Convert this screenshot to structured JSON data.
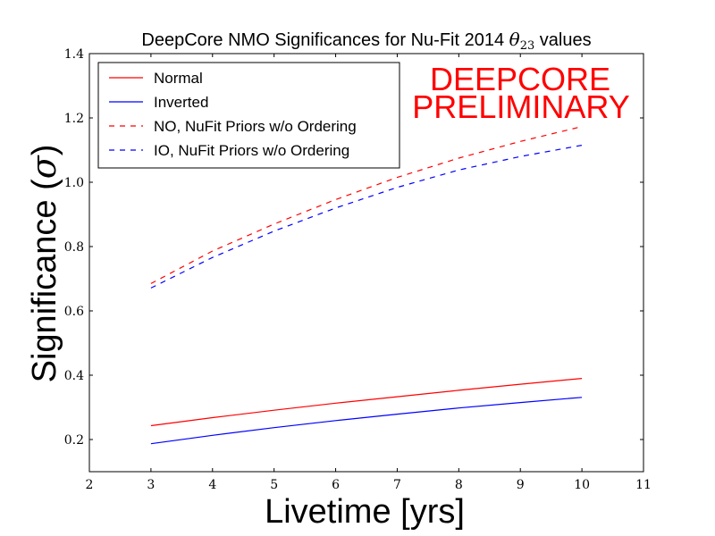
{
  "chart_data": {
    "type": "line",
    "title": "DeepCore NMO Significances for Nu-Fit 2014 θ23 values",
    "title_prefix": "DeepCore NMO Significances for Nu-Fit 2014 ",
    "title_theta": "θ",
    "title_sub": "23",
    "title_suffix": " values",
    "xlabel": "Livetime [yrs]",
    "ylabel_text": "Significance (",
    "ylabel_sigma": "σ",
    "ylabel_close": ")",
    "xlim": [
      2,
      11
    ],
    "ylim": [
      0.1,
      1.4
    ],
    "xticks": [
      "2",
      "3",
      "4",
      "5",
      "6",
      "7",
      "8",
      "9",
      "10",
      "11"
    ],
    "yticks": [
      "0.2",
      "0.4",
      "0.6",
      "0.8",
      "1.0",
      "1.2",
      "1.4"
    ],
    "annotation": [
      "DEEPCORE",
      "PRELIMINARY"
    ],
    "legend_position": "top-left",
    "series": [
      {
        "name": "Normal",
        "color": "#ff0000",
        "style": "solid",
        "x": [
          3,
          4,
          5,
          6,
          7,
          8,
          9,
          10
        ],
        "y": [
          0.243,
          0.268,
          0.291,
          0.313,
          0.333,
          0.353,
          0.372,
          0.39
        ]
      },
      {
        "name": "Inverted",
        "color": "#0000ff",
        "style": "solid",
        "x": [
          3,
          4,
          5,
          6,
          7,
          8,
          9,
          10
        ],
        "y": [
          0.187,
          0.213,
          0.237,
          0.259,
          0.279,
          0.298,
          0.315,
          0.331
        ]
      },
      {
        "name": "NO, NuFit Priors w/o Ordering",
        "color": "#ff0000",
        "style": "dashed",
        "x": [
          3,
          4,
          5,
          6,
          7,
          8,
          9,
          10
        ],
        "y": [
          0.685,
          0.786,
          0.87,
          0.946,
          1.015,
          1.075,
          1.127,
          1.173
        ]
      },
      {
        "name": "IO, NuFit Priors w/o Ordering",
        "color": "#0000ff",
        "style": "dashed",
        "x": [
          3,
          4,
          5,
          6,
          7,
          8,
          9,
          10
        ],
        "y": [
          0.671,
          0.766,
          0.848,
          0.92,
          0.984,
          1.038,
          1.08,
          1.115
        ]
      }
    ]
  }
}
